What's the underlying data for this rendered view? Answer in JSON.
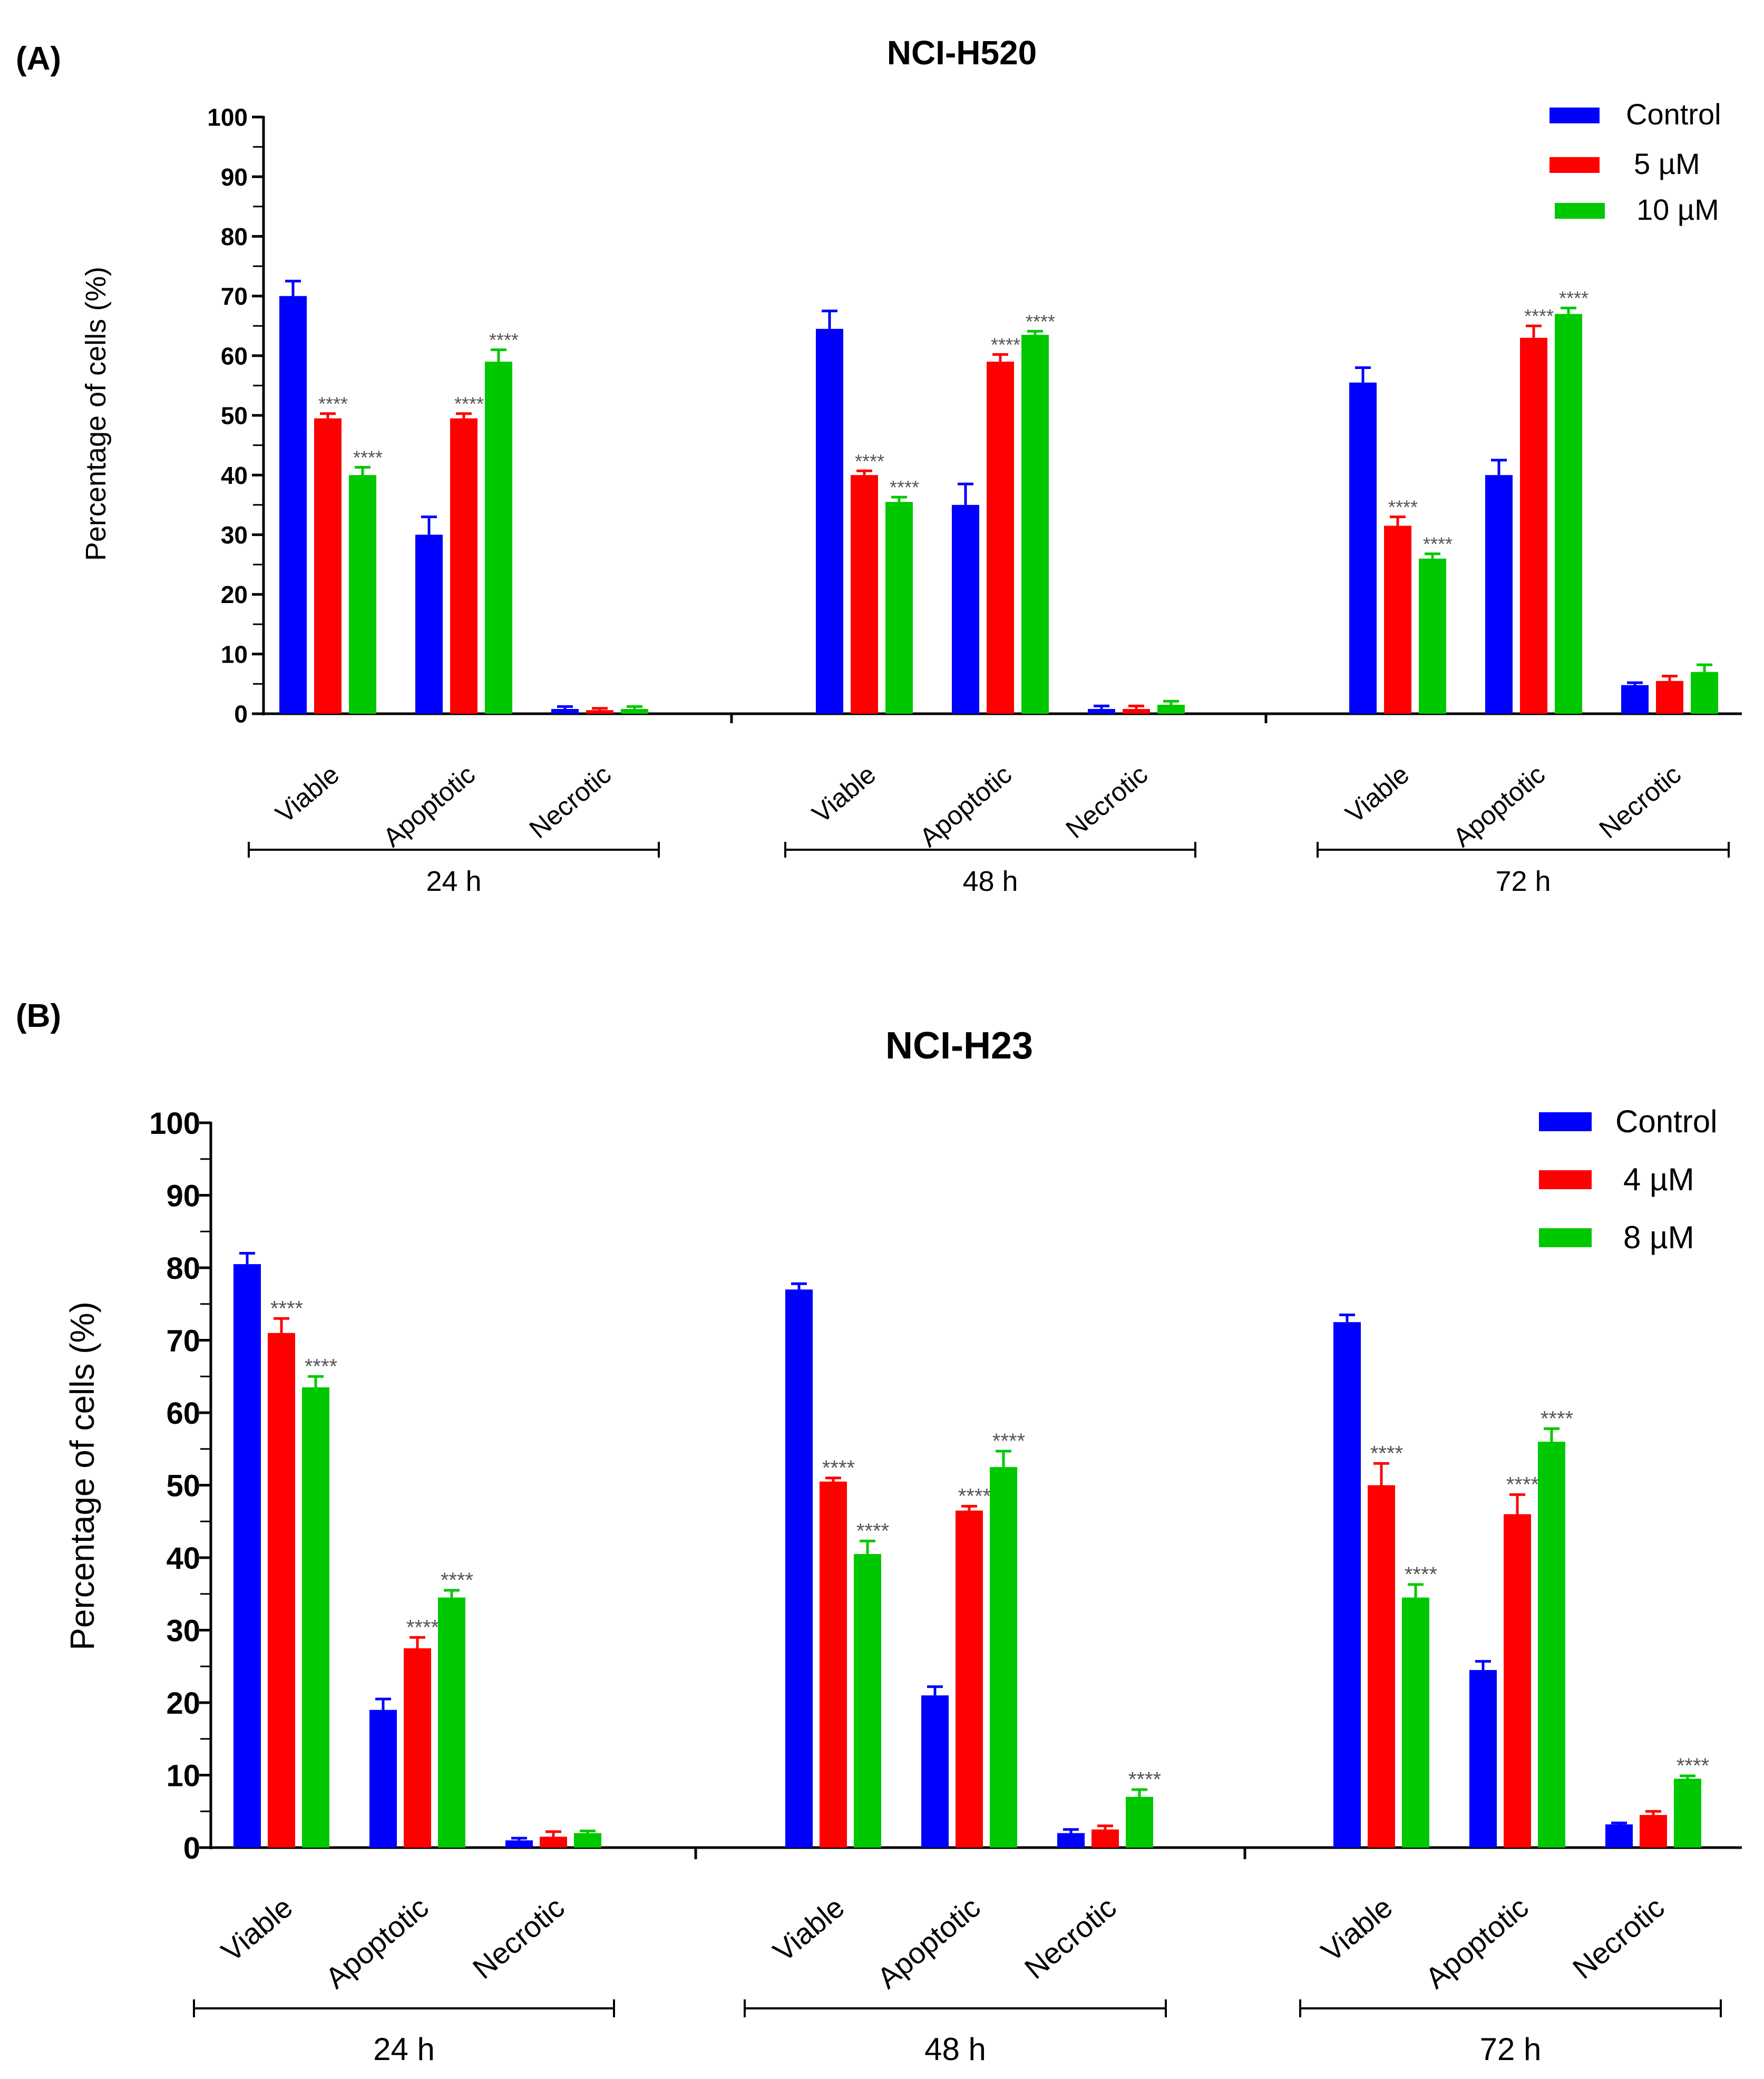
{
  "chart_data": [
    {
      "type": "bar",
      "panel_label": "(A)",
      "title": "NCI-H520",
      "ylabel": "Percentage of cells (%)",
      "xlabel": "",
      "ylim": [
        0,
        100
      ],
      "yticks": [
        "0",
        "10",
        "20",
        "30",
        "40",
        "50",
        "60",
        "70",
        "80",
        "90",
        "100"
      ],
      "categories": [
        "Viable",
        "Apoptotic",
        "Necrotic"
      ],
      "groups": [
        "24 h",
        "48 h",
        "72 h"
      ],
      "legend_position": "top-right",
      "significance_marker": "****",
      "series": [
        {
          "name": "Control",
          "color": "#0000ff",
          "values": [
            [
              70,
              30,
              0.8
            ],
            [
              64.5,
              35,
              0.8
            ],
            [
              55.5,
              40,
              4.8
            ]
          ],
          "errors": [
            [
              2.5,
              3,
              0.4
            ],
            [
              3,
              3.5,
              0.5
            ],
            [
              2.5,
              2.5,
              0.4
            ]
          ],
          "significant": [
            [
              false,
              false,
              false
            ],
            [
              false,
              false,
              false
            ],
            [
              false,
              false,
              false
            ]
          ]
        },
        {
          "name": "5 µM",
          "color": "#ff0000",
          "values": [
            [
              49.5,
              49.5,
              0.6
            ],
            [
              40,
              59,
              0.8
            ],
            [
              31.5,
              63,
              5.5
            ]
          ],
          "errors": [
            [
              0.8,
              0.8,
              0.3
            ],
            [
              0.7,
              1.2,
              0.5
            ],
            [
              1.5,
              2,
              0.8
            ]
          ],
          "significant": [
            [
              true,
              true,
              false
            ],
            [
              true,
              true,
              false
            ],
            [
              true,
              true,
              false
            ]
          ]
        },
        {
          "name": "10 µM",
          "color": "#00c800",
          "values": [
            [
              40,
              59,
              0.8
            ],
            [
              35.5,
              63.5,
              1.5
            ],
            [
              26,
              67,
              7
            ]
          ],
          "errors": [
            [
              1.3,
              2,
              0.4
            ],
            [
              0.8,
              0.6,
              0.6
            ],
            [
              0.8,
              1,
              1.2
            ]
          ],
          "significant": [
            [
              true,
              true,
              false
            ],
            [
              true,
              true,
              false
            ],
            [
              true,
              true,
              false
            ]
          ]
        }
      ]
    },
    {
      "type": "bar",
      "panel_label": "(B)",
      "title": "NCI-H23",
      "ylabel": "Percentage of cells (%)",
      "xlabel": "",
      "ylim": [
        0,
        100
      ],
      "yticks": [
        "0",
        "10",
        "20",
        "30",
        "40",
        "50",
        "60",
        "70",
        "80",
        "90",
        "100"
      ],
      "categories": [
        "Viable",
        "Apoptotic",
        "Necrotic"
      ],
      "groups": [
        "24 h",
        "48 h",
        "72 h"
      ],
      "legend_position": "top-right",
      "significance_marker": "****",
      "series": [
        {
          "name": "Control",
          "color": "#0000ff",
          "values": [
            [
              80.5,
              19,
              1
            ],
            [
              77,
              21,
              2
            ],
            [
              72.5,
              24.5,
              3.2
            ]
          ],
          "errors": [
            [
              1.5,
              1.5,
              0.3
            ],
            [
              0.8,
              1.2,
              0.5
            ],
            [
              1,
              1.2,
              0.2
            ]
          ],
          "significant": [
            [
              false,
              false,
              false
            ],
            [
              false,
              false,
              false
            ],
            [
              false,
              false,
              false
            ]
          ]
        },
        {
          "name": "4 µM",
          "color": "#ff0000",
          "values": [
            [
              71,
              27.5,
              1.5
            ],
            [
              50.5,
              46.5,
              2.5
            ],
            [
              50,
              46,
              4.5
            ]
          ],
          "errors": [
            [
              2,
              1.5,
              0.7
            ],
            [
              0.5,
              0.6,
              0.5
            ],
            [
              3,
              2.7,
              0.5
            ]
          ],
          "significant": [
            [
              true,
              true,
              false
            ],
            [
              true,
              true,
              false
            ],
            [
              true,
              true,
              false
            ]
          ]
        },
        {
          "name": "8 µM",
          "color": "#00c800",
          "values": [
            [
              63.5,
              34.5,
              2
            ],
            [
              40.5,
              52.5,
              7
            ],
            [
              34.5,
              56,
              9.5
            ]
          ],
          "errors": [
            [
              1.5,
              1,
              0.3
            ],
            [
              1.8,
              2.2,
              1
            ],
            [
              1.8,
              1.8,
              0.4
            ]
          ],
          "significant": [
            [
              true,
              true,
              false
            ],
            [
              true,
              true,
              true
            ],
            [
              true,
              true,
              true
            ]
          ]
        }
      ]
    }
  ]
}
